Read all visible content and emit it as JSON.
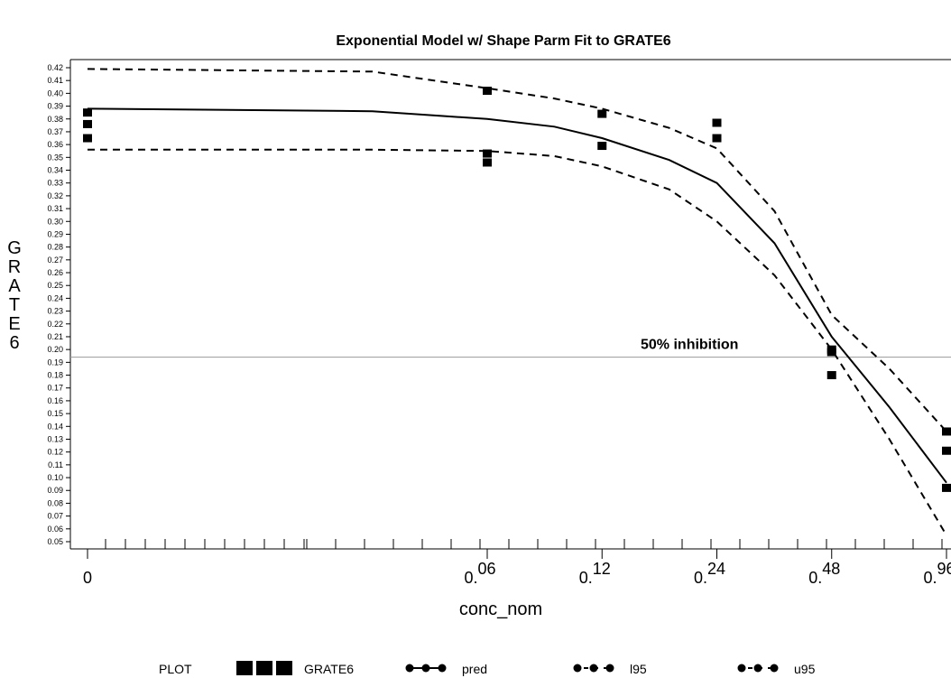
{
  "chart_data": {
    "type": "scatter",
    "title": "Exponential Model w/ Shape Parm Fit to GRATE6",
    "xlabel": "conc_nom",
    "ylabel": "GRATE6",
    "x_scale": "log2",
    "x_ticks": [
      {
        "value": 0,
        "base": "0",
        "exp": ""
      },
      {
        "value": 0.06,
        "base": "0.",
        "exp": "06"
      },
      {
        "value": 0.12,
        "base": "0.",
        "exp": "12"
      },
      {
        "value": 0.24,
        "base": "0.",
        "exp": "24"
      },
      {
        "value": 0.48,
        "base": "0.",
        "exp": "48"
      },
      {
        "value": 0.96,
        "base": "0.",
        "exp": "96"
      }
    ],
    "ylim": [
      0.05,
      0.42
    ],
    "y_tick_step": 0.01,
    "grid": false,
    "reference_line": {
      "y": 0.194,
      "label": "50% inhibition"
    },
    "series": [
      {
        "name": "GRATE6",
        "style": "points",
        "points": [
          {
            "x": 0,
            "y": 0.385
          },
          {
            "x": 0,
            "y": 0.376
          },
          {
            "x": 0,
            "y": 0.365
          },
          {
            "x": 0.06,
            "y": 0.402
          },
          {
            "x": 0.06,
            "y": 0.353
          },
          {
            "x": 0.06,
            "y": 0.346
          },
          {
            "x": 0.12,
            "y": 0.384
          },
          {
            "x": 0.12,
            "y": 0.359
          },
          {
            "x": 0.24,
            "y": 0.377
          },
          {
            "x": 0.24,
            "y": 0.365
          },
          {
            "x": 0.48,
            "y": 0.2
          },
          {
            "x": 0.48,
            "y": 0.198
          },
          {
            "x": 0.48,
            "y": 0.18
          },
          {
            "x": 0.96,
            "y": 0.136
          },
          {
            "x": 0.96,
            "y": 0.121
          },
          {
            "x": 0.96,
            "y": 0.092
          }
        ]
      },
      {
        "name": "pred",
        "style": "solid",
        "points": [
          {
            "x": 0,
            "y": 0.388
          },
          {
            "x": 0.03,
            "y": 0.386
          },
          {
            "x": 0.06,
            "y": 0.38
          },
          {
            "x": 0.09,
            "y": 0.374
          },
          {
            "x": 0.12,
            "y": 0.365
          },
          {
            "x": 0.18,
            "y": 0.348
          },
          {
            "x": 0.24,
            "y": 0.33
          },
          {
            "x": 0.34,
            "y": 0.283
          },
          {
            "x": 0.48,
            "y": 0.21
          },
          {
            "x": 0.68,
            "y": 0.155
          },
          {
            "x": 0.96,
            "y": 0.096
          }
        ]
      },
      {
        "name": "l95",
        "style": "dashed",
        "points": [
          {
            "x": 0,
            "y": 0.356
          },
          {
            "x": 0.03,
            "y": 0.356
          },
          {
            "x": 0.06,
            "y": 0.355
          },
          {
            "x": 0.09,
            "y": 0.351
          },
          {
            "x": 0.12,
            "y": 0.343
          },
          {
            "x": 0.18,
            "y": 0.325
          },
          {
            "x": 0.24,
            "y": 0.3
          },
          {
            "x": 0.34,
            "y": 0.258
          },
          {
            "x": 0.48,
            "y": 0.2
          },
          {
            "x": 0.68,
            "y": 0.13
          },
          {
            "x": 0.96,
            "y": 0.055
          }
        ]
      },
      {
        "name": "u95",
        "style": "dashed",
        "points": [
          {
            "x": 0,
            "y": 0.419
          },
          {
            "x": 0.03,
            "y": 0.417
          },
          {
            "x": 0.06,
            "y": 0.404
          },
          {
            "x": 0.09,
            "y": 0.396
          },
          {
            "x": 0.12,
            "y": 0.388
          },
          {
            "x": 0.18,
            "y": 0.373
          },
          {
            "x": 0.24,
            "y": 0.357
          },
          {
            "x": 0.34,
            "y": 0.308
          },
          {
            "x": 0.48,
            "y": 0.227
          },
          {
            "x": 0.68,
            "y": 0.185
          },
          {
            "x": 0.96,
            "y": 0.136
          }
        ]
      }
    ],
    "legend": {
      "placement": "bottom",
      "title": "PLOT",
      "entries": [
        {
          "name": "GRATE6",
          "marker": "square"
        },
        {
          "name": "pred",
          "marker": "dot-solid"
        },
        {
          "name": "l95",
          "marker": "dot-dashed"
        },
        {
          "name": "u95",
          "marker": "dot-dashed"
        }
      ]
    }
  }
}
